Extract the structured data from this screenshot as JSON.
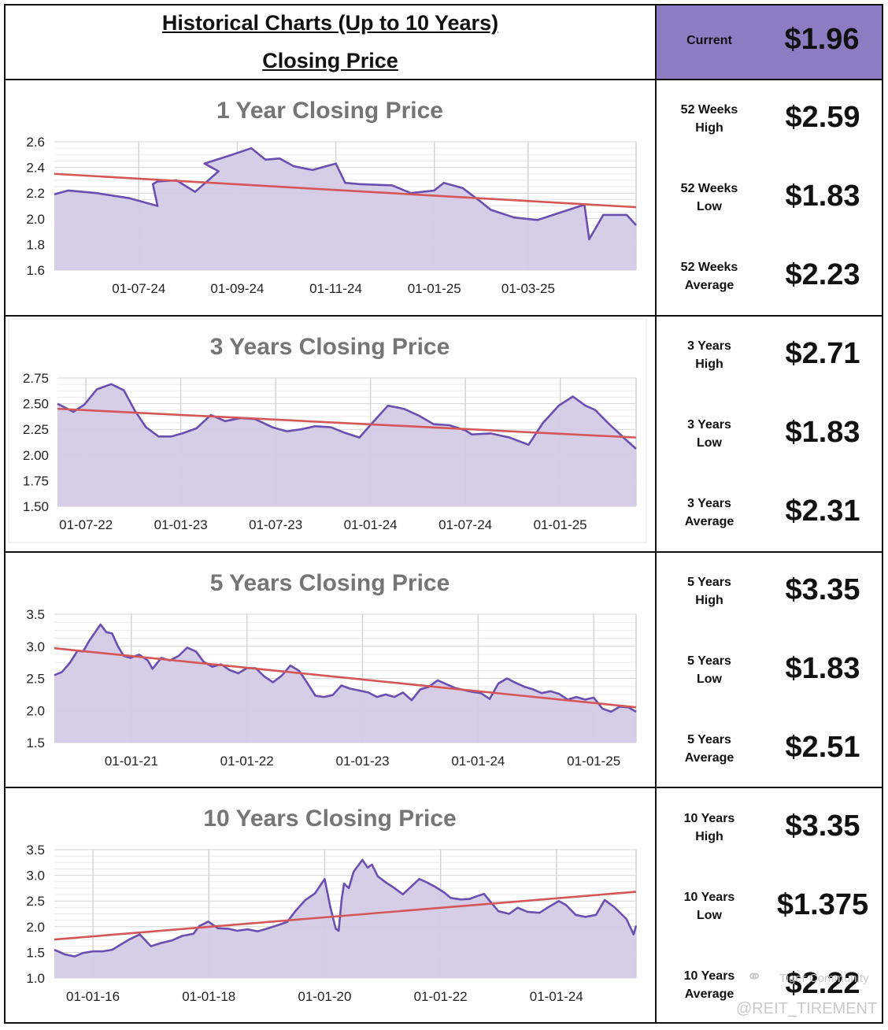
{
  "header": {
    "title": "Historical Charts (Up to 10 Years)",
    "subtitle": "Closing Price",
    "current_label": "Current",
    "current_value": "$1.96"
  },
  "colors": {
    "line": "#6a4fb0",
    "fill": "#d4cae6",
    "trend": "#d45757",
    "grid": "#d4d4d4",
    "header_bg": "#8e7cc3",
    "title_gray": "#757575"
  },
  "stats": [
    {
      "label_top": "52 Weeks",
      "label_bottom": "High",
      "value": "$2.59"
    },
    {
      "label_top": "52 Weeks",
      "label_bottom": "Low",
      "value": "$1.83"
    },
    {
      "label_top": "52 Weeks",
      "label_bottom": "Average",
      "value": "$2.23"
    },
    {
      "label_top": "3 Years",
      "label_bottom": "High",
      "value": "$2.71"
    },
    {
      "label_top": "3 Years",
      "label_bottom": "Low",
      "value": "$1.83"
    },
    {
      "label_top": "3 Years",
      "label_bottom": "Average",
      "value": "$2.31"
    },
    {
      "label_top": "5 Years",
      "label_bottom": "High",
      "value": "$3.35"
    },
    {
      "label_top": "5 Years",
      "label_bottom": "Low",
      "value": "$1.83"
    },
    {
      "label_top": "5 Years",
      "label_bottom": "Average",
      "value": "$2.51"
    },
    {
      "label_top": "10 Years",
      "label_bottom": "High",
      "value": "$3.35"
    },
    {
      "label_top": "10 Years",
      "label_bottom": "Low",
      "value": "$1.375"
    },
    {
      "label_top": "10 Years",
      "label_bottom": "Average",
      "value": "$2.22"
    }
  ],
  "watermark": {
    "brand": "Tiger Community",
    "handle": "@REIT_TIREMENT"
  },
  "chart_data": [
    {
      "type": "area",
      "title": "1 Year Closing Price",
      "ylim": [
        1.6,
        2.6
      ],
      "yticks": [
        1.6,
        1.8,
        2.0,
        2.2,
        2.4,
        2.6
      ],
      "ytick_labels": [
        "1.6",
        "1.8",
        "2.0",
        "2.2",
        "2.4",
        "2.6"
      ],
      "x_range": [
        0,
        12.4
      ],
      "xticks": [
        1.8,
        3.9,
        6.0,
        8.1,
        10.1,
        12.4
      ],
      "xtick_labels": [
        "01-07-24",
        "01-09-24",
        "01-11-24",
        "01-01-25",
        "01-03-25",
        ""
      ],
      "series": [
        {
          "name": "Closing Price",
          "x": [
            0,
            0.3,
            0.9,
            1.6,
            2.2,
            2.1,
            2.2,
            2.6,
            3.0,
            3.5,
            3.2,
            3.8,
            4.2,
            4.5,
            4.8,
            5.1,
            5.5,
            6.0,
            6.2,
            6.5,
            7.2,
            7.6,
            8.1,
            8.3,
            8.7,
            9.1,
            9.3,
            9.8,
            10.3,
            11.3,
            11.4,
            11.7,
            12.2,
            12.4
          ],
          "y": [
            2.19,
            2.22,
            2.2,
            2.16,
            2.1,
            2.27,
            2.29,
            2.3,
            2.21,
            2.37,
            2.43,
            2.5,
            2.55,
            2.46,
            2.47,
            2.41,
            2.38,
            2.43,
            2.28,
            2.27,
            2.26,
            2.2,
            2.22,
            2.28,
            2.24,
            2.13,
            2.07,
            2.01,
            1.99,
            2.11,
            1.84,
            2.03,
            2.03,
            1.95
          ]
        }
      ],
      "trend": {
        "x": [
          0,
          12.4
        ],
        "y": [
          2.35,
          2.09
        ]
      }
    },
    {
      "type": "area",
      "title": "3 Years Closing Price",
      "ylim": [
        1.5,
        2.75
      ],
      "yticks": [
        1.5,
        1.75,
        2.0,
        2.25,
        2.5,
        2.75
      ],
      "ytick_labels": [
        "1.50",
        "1.75",
        "2.00",
        "2.25",
        "2.50",
        "2.75"
      ],
      "x_range": [
        0,
        36.6
      ],
      "xticks": [
        1.8,
        7.8,
        13.8,
        19.8,
        25.8,
        31.8,
        36.6
      ],
      "xtick_labels": [
        "01-07-22",
        "01-01-23",
        "01-07-23",
        "01-01-24",
        "01-07-24",
        "01-01-25",
        ""
      ],
      "series": [
        {
          "name": "Closing Price",
          "x": [
            0,
            1.0,
            1.7,
            2.5,
            3.4,
            4.2,
            4.9,
            5.6,
            6.4,
            7.2,
            7.9,
            8.8,
            9.7,
            10.6,
            11.6,
            12.5,
            13.6,
            14.5,
            15.4,
            16.3,
            17.3,
            18.1,
            19.1,
            19.9,
            20.9,
            21.9,
            22.9,
            23.8,
            24.8,
            25.8,
            26.2,
            27.4,
            28.6,
            29.8,
            30.7,
            31.7,
            32.6,
            33.4,
            34.0,
            34.9,
            35.4,
            35.8,
            36.6
          ],
          "y": [
            2.5,
            2.42,
            2.49,
            2.64,
            2.69,
            2.63,
            2.43,
            2.27,
            2.18,
            2.18,
            2.21,
            2.26,
            2.39,
            2.33,
            2.36,
            2.35,
            2.27,
            2.23,
            2.25,
            2.28,
            2.27,
            2.22,
            2.17,
            2.31,
            2.48,
            2.45,
            2.38,
            2.3,
            2.29,
            2.24,
            2.2,
            2.21,
            2.17,
            2.1,
            2.31,
            2.48,
            2.57,
            2.48,
            2.44,
            2.3,
            2.23,
            2.17,
            2.06
          ]
        }
      ],
      "trend": {
        "x": [
          0,
          36.6
        ],
        "y": [
          2.45,
          2.17
        ]
      }
    },
    {
      "type": "area",
      "title": "5 Years Closing Price",
      "ylim": [
        1.5,
        3.5
      ],
      "yticks": [
        1.5,
        2.0,
        2.5,
        3.0,
        3.5
      ],
      "ytick_labels": [
        "1.5",
        "2.0",
        "2.5",
        "3.0",
        "3.5"
      ],
      "x_range": [
        0,
        60.4
      ],
      "xticks": [
        8,
        20,
        32,
        44,
        56,
        60.4
      ],
      "xtick_labels": [
        "01-01-21",
        "01-01-22",
        "01-01-23",
        "01-01-24",
        "01-01-25",
        ""
      ],
      "series": [
        {
          "name": "Closing Price",
          "x": [
            0,
            0.8,
            1.6,
            2.4,
            3.0,
            3.6,
            4.2,
            4.8,
            5.4,
            6.0,
            6.6,
            7.2,
            7.9,
            8.8,
            9.7,
            10.2,
            11.1,
            12.0,
            12.9,
            13.8,
            14.7,
            15.5,
            16.4,
            17.3,
            18.2,
            19.1,
            20.0,
            20.9,
            21.8,
            22.7,
            23.6,
            24.5,
            25.4,
            26.3,
            27.1,
            28.0,
            28.9,
            29.8,
            30.7,
            31.7,
            32.6,
            33.5,
            34.4,
            35.3,
            36.2,
            37.1,
            38.0,
            38.9,
            39.8,
            40.7,
            41.6,
            42.5,
            43.4,
            44.3,
            45.2,
            46.1,
            47.0,
            47.9,
            48.8,
            49.7,
            50.6,
            51.5,
            52.4,
            53.3,
            54.2,
            55.1,
            56.0,
            56.9,
            57.8,
            58.7,
            59.6,
            60.4
          ],
          "y": [
            2.55,
            2.6,
            2.74,
            2.93,
            2.92,
            3.08,
            3.21,
            3.34,
            3.22,
            3.2,
            3.0,
            2.85,
            2.82,
            2.87,
            2.78,
            2.65,
            2.82,
            2.78,
            2.85,
            2.98,
            2.92,
            2.76,
            2.68,
            2.72,
            2.63,
            2.58,
            2.66,
            2.66,
            2.53,
            2.44,
            2.54,
            2.7,
            2.62,
            2.42,
            2.23,
            2.21,
            2.24,
            2.39,
            2.34,
            2.31,
            2.28,
            2.21,
            2.25,
            2.21,
            2.28,
            2.16,
            2.33,
            2.37,
            2.47,
            2.41,
            2.35,
            2.32,
            2.29,
            2.27,
            2.18,
            2.42,
            2.5,
            2.43,
            2.37,
            2.33,
            2.27,
            2.3,
            2.26,
            2.17,
            2.21,
            2.17,
            2.2,
            2.03,
            1.98,
            2.06,
            2.05,
            1.98
          ]
        }
      ],
      "trend": {
        "x": [
          0,
          60.4
        ],
        "y": [
          2.97,
          2.05
        ]
      }
    },
    {
      "type": "area",
      "title": "10 Years Closing Price",
      "ylim": [
        1.0,
        3.5
      ],
      "yticks": [
        1.0,
        1.5,
        2.0,
        2.5,
        3.0,
        3.5
      ],
      "ytick_labels": [
        "1.0",
        "1.5",
        "2.0",
        "2.5",
        "3.0",
        "3.5"
      ],
      "x_range": [
        0,
        120.5
      ],
      "xticks": [
        8,
        32,
        56,
        80,
        104,
        120.5
      ],
      "xtick_labels": [
        "01-01-16",
        "01-01-18",
        "01-01-20",
        "01-01-22",
        "01-01-24",
        ""
      ],
      "series": [
        {
          "name": "Closing Price",
          "x": [
            0,
            2.2,
            4.2,
            6.0,
            8.0,
            10.0,
            12.0,
            13.9,
            15.5,
            17.7,
            20.0,
            22.0,
            24.3,
            26.5,
            28.8,
            30.0,
            31.9,
            33.9,
            36.0,
            37.9,
            40.0,
            42.1,
            44.0,
            46.0,
            48.2,
            50.0,
            52.0,
            54.0,
            56.0,
            57.2,
            58.3,
            58.9,
            59.5,
            60.0,
            61.0,
            62.0,
            63.8,
            64.9,
            65.8,
            67.0,
            68.7,
            70.0,
            72.2,
            73.8,
            75.6,
            77.2,
            78.8,
            80.7,
            82.1,
            84.2,
            86.0,
            87.4,
            89.0,
            90.2,
            92.0,
            94.2,
            96.0,
            98.0,
            100.5,
            102.0,
            104.5,
            106.0,
            108.0,
            110.0,
            112.2,
            114.0,
            116.0,
            118.5,
            120.0,
            120.5
          ],
          "y": [
            1.55,
            1.46,
            1.42,
            1.49,
            1.52,
            1.52,
            1.55,
            1.66,
            1.75,
            1.85,
            1.62,
            1.68,
            1.73,
            1.82,
            1.86,
            2.01,
            2.1,
            1.97,
            1.96,
            1.92,
            1.95,
            1.91,
            1.96,
            2.02,
            2.09,
            2.31,
            2.52,
            2.65,
            2.93,
            2.37,
            1.96,
            1.92,
            2.52,
            2.84,
            2.75,
            3.07,
            3.3,
            3.15,
            3.21,
            2.98,
            2.86,
            2.78,
            2.63,
            2.77,
            2.93,
            2.86,
            2.78,
            2.67,
            2.56,
            2.53,
            2.54,
            2.59,
            2.64,
            2.5,
            2.3,
            2.25,
            2.37,
            2.29,
            2.27,
            2.36,
            2.5,
            2.42,
            2.23,
            2.19,
            2.23,
            2.52,
            2.38,
            2.15,
            1.85,
            2.02
          ]
        }
      ],
      "trend": {
        "x": [
          0,
          120.5
        ],
        "y": [
          1.75,
          2.68
        ]
      }
    }
  ]
}
